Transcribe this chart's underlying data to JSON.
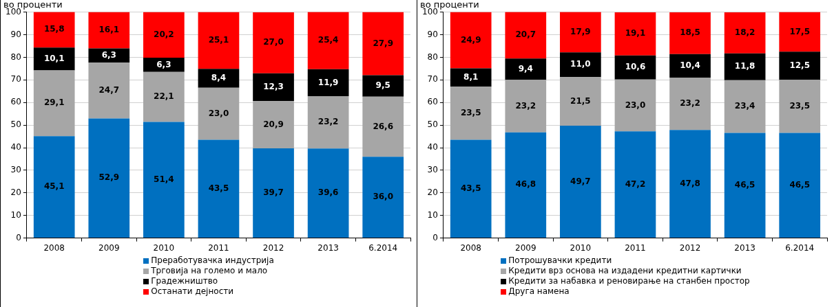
{
  "chart_data": [
    {
      "type": "bar",
      "title": "во проценти",
      "stacked": true,
      "categories": [
        "2008",
        "2009",
        "2010",
        "2011",
        "2012",
        "2013",
        "6.2014"
      ],
      "ylim": [
        0,
        100
      ],
      "yticks": [
        0,
        10,
        20,
        30,
        40,
        50,
        60,
        70,
        80,
        90,
        100
      ],
      "grid": "y",
      "legend": "bottom",
      "series": [
        {
          "name": "Преработувачка индустрија",
          "color": "#0070c0",
          "values": [
            45.1,
            52.9,
            51.4,
            43.5,
            39.7,
            39.6,
            36.0
          ],
          "value_labels": [
            "45,1",
            "52,9",
            "51,4",
            "43,5",
            "39,7",
            "39,6",
            "36,0"
          ]
        },
        {
          "name": "Трговија на големо и мало",
          "color": "#a6a6a6",
          "values": [
            29.1,
            24.7,
            22.1,
            23.0,
            20.9,
            23.2,
            26.6
          ],
          "value_labels": [
            "29,1",
            "24,7",
            "22,1",
            "23,0",
            "20,9",
            "23,2",
            "26,6"
          ]
        },
        {
          "name": "Градежништво",
          "color": "#000000",
          "values": [
            10.1,
            6.3,
            6.3,
            8.4,
            12.3,
            11.9,
            9.5
          ],
          "value_labels": [
            "10,1",
            "6,3",
            "6,3",
            "8,4",
            "12,3",
            "11,9",
            "9,5"
          ]
        },
        {
          "name": "Останати дејности",
          "color": "#ff0000",
          "values": [
            15.8,
            16.1,
            20.2,
            25.1,
            27.0,
            25.4,
            27.9
          ],
          "value_labels": [
            "15,8",
            "16,1",
            "20,2",
            "25,1",
            "27,0",
            "25,4",
            "27,9"
          ]
        }
      ]
    },
    {
      "type": "bar",
      "title": "во проценти",
      "stacked": true,
      "categories": [
        "2008",
        "2009",
        "2010",
        "2011",
        "2012",
        "2013",
        "6.2014"
      ],
      "ylim": [
        0,
        100
      ],
      "yticks": [
        0,
        10,
        20,
        30,
        40,
        50,
        60,
        70,
        80,
        90,
        100
      ],
      "grid": "y",
      "legend": "bottom",
      "series": [
        {
          "name": "Потрошувачки кредити",
          "color": "#0070c0",
          "values": [
            43.5,
            46.8,
            49.7,
            47.2,
            47.8,
            46.5,
            46.5
          ],
          "value_labels": [
            "43,5",
            "46,8",
            "49,7",
            "47,2",
            "47,8",
            "46,5",
            "46,5"
          ]
        },
        {
          "name": "Кредити врз основа на издадени кредитни картички",
          "color": "#a6a6a6",
          "values": [
            23.5,
            23.2,
            21.5,
            23.0,
            23.2,
            23.4,
            23.5
          ],
          "value_labels": [
            "23,5",
            "23,2",
            "21,5",
            "23,0",
            "23,2",
            "23,4",
            "23,5"
          ]
        },
        {
          "name": "Кредити за набавка и реновирање на станбен простор",
          "color": "#000000",
          "values": [
            8.1,
            9.4,
            11.0,
            10.6,
            10.4,
            11.8,
            12.5
          ],
          "value_labels": [
            "8,1",
            "9,4",
            "11,0",
            "10,6",
            "10,4",
            "11,8",
            "12,5"
          ]
        },
        {
          "name": "Друга намена",
          "color": "#ff0000",
          "values": [
            24.9,
            20.7,
            17.9,
            19.1,
            18.5,
            18.2,
            17.5
          ],
          "value_labels": [
            "24,9",
            "20,7",
            "17,9",
            "19,1",
            "18,5",
            "18,2",
            "17,5"
          ]
        }
      ]
    }
  ]
}
